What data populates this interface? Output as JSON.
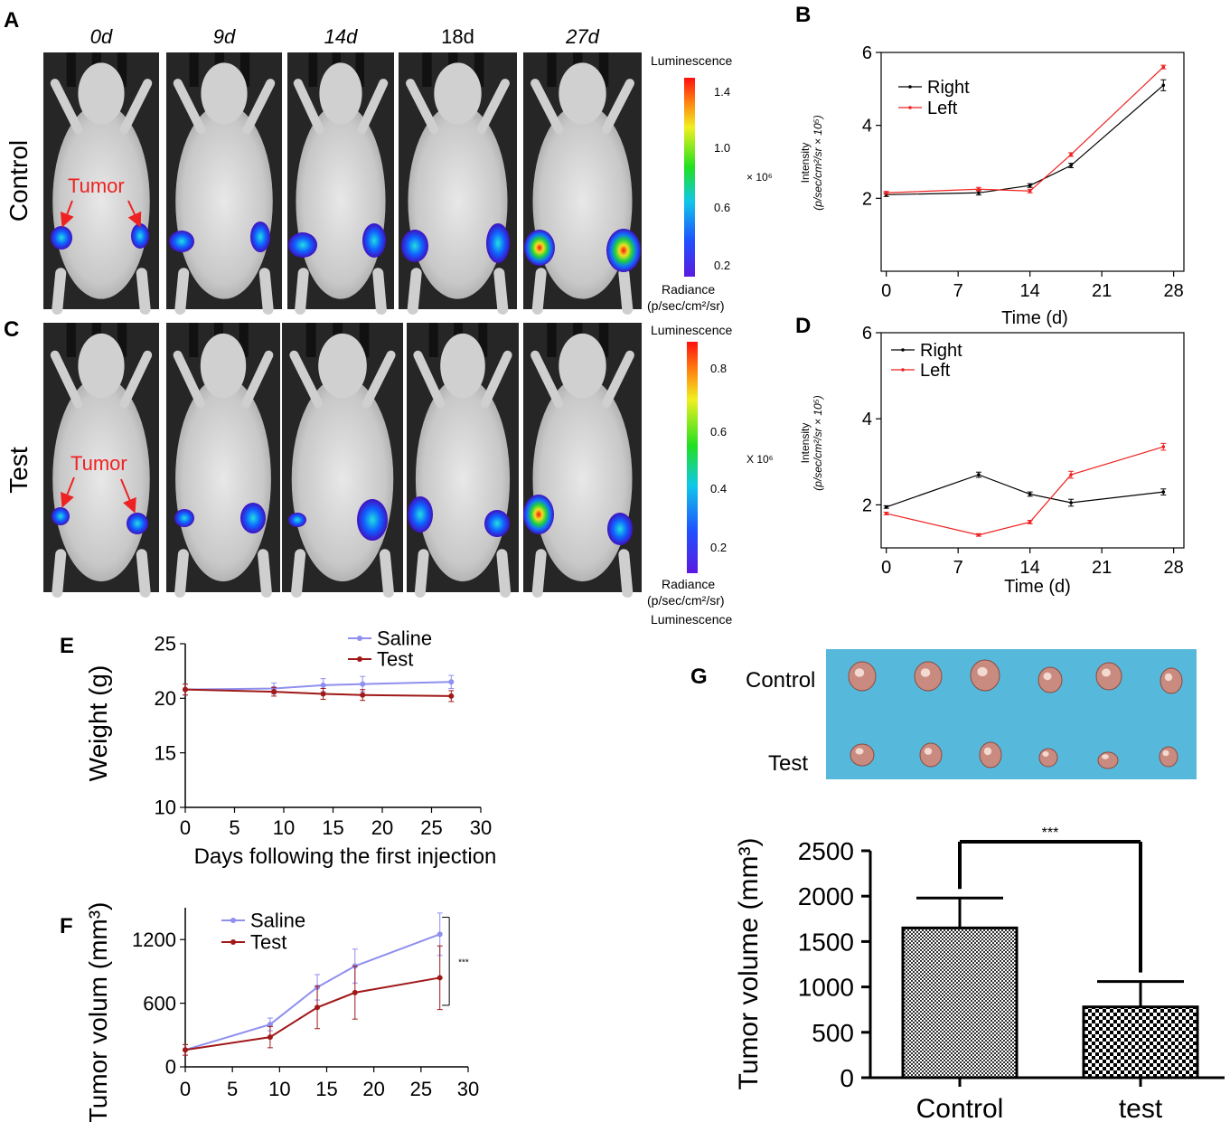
{
  "panel_letters": {
    "a": "A",
    "b": "B",
    "c": "C",
    "d": "D",
    "e": "E",
    "f": "F",
    "g": "G"
  },
  "colors": {
    "black": "#000000",
    "red": "#ee2222",
    "saline": "#8f8ff0",
    "test": "#a01818",
    "tumor_text": "#ee2222",
    "blue_paper": "#4fb6d9",
    "tissue": "#c98b7f"
  },
  "panel_a": {
    "row_label": "Control",
    "day_labels": [
      "0d",
      "9d",
      "14d",
      "18d",
      "27d"
    ],
    "tumor_label": "Tumor",
    "colorbar": {
      "title": "Luminescence",
      "ticks": [
        "1.4",
        "1.0",
        "0.6",
        "0.2"
      ],
      "scale": "× 10⁶",
      "bottom_line1": "Radiance",
      "bottom_line2": "(p/sec/cm²/sr)"
    }
  },
  "panel_c": {
    "row_label": "Test",
    "tumor_label": "Tumor",
    "colorbar": {
      "title": "Luminescence",
      "ticks": [
        "0.8",
        "0.6",
        "0.4",
        "0.2"
      ],
      "scale": "X 10⁶",
      "bottom_line1": "Radiance",
      "bottom_line2": "(p/sec/cm²/sr)",
      "bottom_line3": "Luminescence"
    }
  },
  "chart_data": [
    {
      "id": "B",
      "type": "line",
      "xlabel": "Time (d)",
      "ylabel": "Intensity",
      "ylabel_units": "(p/sec/cm²/sr × 10⁵)",
      "xticks": [
        "0",
        "7",
        "14",
        "21",
        "28"
      ],
      "yticks": [
        "2",
        "4",
        "6"
      ],
      "xlim": [
        -0.5,
        29
      ],
      "ylim": [
        0,
        6
      ],
      "series": [
        {
          "name": "Right",
          "color": "#000000",
          "x": [
            0,
            9,
            14,
            18,
            27
          ],
          "y": [
            2.1,
            2.15,
            2.35,
            2.9,
            5.1
          ],
          "err": [
            0.05,
            0.06,
            0.05,
            0.06,
            0.15
          ]
        },
        {
          "name": "Left",
          "color": "#ee2222",
          "x": [
            0,
            9,
            14,
            18,
            27
          ],
          "y": [
            2.15,
            2.25,
            2.2,
            3.2,
            5.6
          ],
          "err": [
            0.04,
            0.05,
            0.05,
            0.05,
            0.05
          ]
        }
      ]
    },
    {
      "id": "D",
      "type": "line",
      "xlabel": "Time (d)",
      "ylabel": "Intensity",
      "ylabel_units": "(p/sec/cm²/sr × 10⁵)",
      "xticks": [
        "0",
        "7",
        "14",
        "21",
        "28"
      ],
      "yticks": [
        "2",
        "4",
        "6"
      ],
      "xlim": [
        -0.5,
        29
      ],
      "ylim": [
        1,
        6
      ],
      "series": [
        {
          "name": "Right",
          "color": "#000000",
          "x": [
            0,
            9,
            14,
            18,
            27
          ],
          "y": [
            1.95,
            2.7,
            2.25,
            2.05,
            2.3
          ],
          "err": [
            0.03,
            0.06,
            0.05,
            0.08,
            0.07
          ]
        },
        {
          "name": "Left",
          "color": "#ee2222",
          "x": [
            0,
            9,
            14,
            18,
            27
          ],
          "y": [
            1.8,
            1.3,
            1.6,
            2.7,
            3.35
          ],
          "err": [
            0.03,
            0.03,
            0.04,
            0.08,
            0.08
          ]
        }
      ]
    },
    {
      "id": "E",
      "type": "line",
      "xlabel": "Days following the first injection",
      "ylabel": "Weight (g)",
      "xticks": [
        "0",
        "5",
        "10",
        "15",
        "20",
        "25",
        "30"
      ],
      "yticks": [
        "10",
        "15",
        "20",
        "25"
      ],
      "xlim": [
        0,
        30
      ],
      "ylim": [
        10,
        25
      ],
      "series": [
        {
          "name": "Saline",
          "color": "#8f8ff0",
          "x": [
            0,
            9,
            14,
            18,
            27
          ],
          "y": [
            20.8,
            20.9,
            21.2,
            21.3,
            21.5
          ],
          "err": [
            0.5,
            0.5,
            0.6,
            0.7,
            0.6
          ]
        },
        {
          "name": "Test",
          "color": "#a01818",
          "x": [
            0,
            9,
            14,
            18,
            27
          ],
          "y": [
            20.8,
            20.6,
            20.4,
            20.3,
            20.2
          ],
          "err": [
            0.5,
            0.4,
            0.5,
            0.5,
            0.5
          ]
        }
      ]
    },
    {
      "id": "F",
      "type": "line",
      "xlabel": "",
      "ylabel": "Tumor volum (mm³)",
      "xticks": [
        "0",
        "5",
        "10",
        "15",
        "20",
        "25",
        "30"
      ],
      "yticks": [
        "0",
        "600",
        "1200"
      ],
      "xlim": [
        0,
        30
      ],
      "ylim": [
        0,
        1500
      ],
      "significance": "***",
      "series": [
        {
          "name": "Saline",
          "color": "#8f8ff0",
          "x": [
            0,
            9,
            14,
            18,
            27
          ],
          "y": [
            160,
            400,
            750,
            950,
            1250
          ],
          "err": [
            50,
            60,
            120,
            160,
            200
          ]
        },
        {
          "name": "Test",
          "color": "#a01818",
          "x": [
            0,
            9,
            14,
            18,
            27
          ],
          "y": [
            160,
            280,
            560,
            700,
            840
          ],
          "err": [
            50,
            100,
            200,
            250,
            300
          ]
        }
      ]
    },
    {
      "id": "G",
      "type": "bar",
      "xlabel": "",
      "ylabel": "Tumor volume (mm³)",
      "categories": [
        "Control",
        "test"
      ],
      "values": [
        1650,
        780
      ],
      "err": [
        330,
        280
      ],
      "yticks": [
        "0",
        "500",
        "1000",
        "1500",
        "2000",
        "2500"
      ],
      "ylim": [
        0,
        2500
      ],
      "significance": "***"
    }
  ],
  "panel_g_photo": {
    "row_labels": [
      "Control",
      "Test"
    ]
  }
}
